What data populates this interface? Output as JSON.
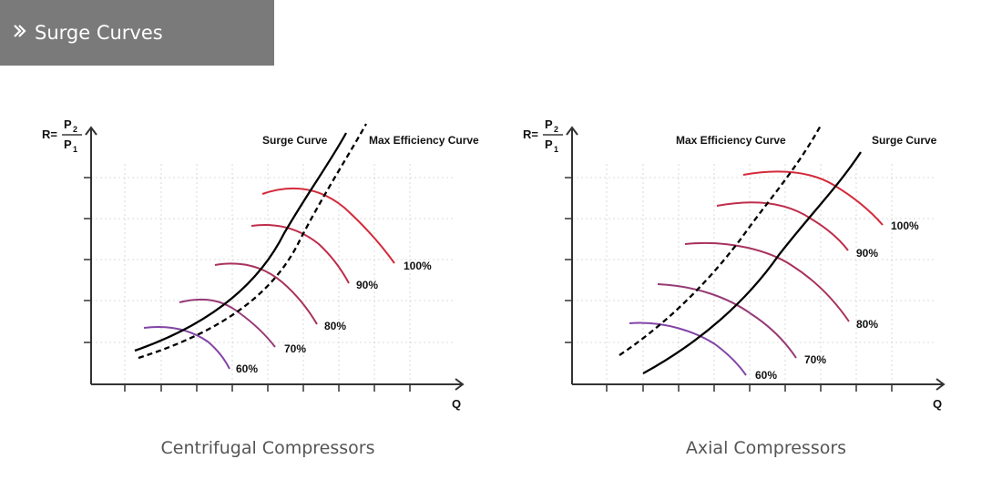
{
  "header": {
    "title": "Surge Curves",
    "icon": "double-chevron-right-icon"
  },
  "colors": {
    "header_bg": "#7a7a7a",
    "surge": "#000000",
    "p100": "#d42a3a",
    "p90": "#bf2d4c",
    "p80": "#a8325e",
    "p70": "#963a76",
    "p60": "#8344a6"
  },
  "panels": [
    {
      "caption": "Centrifugal Compressors",
      "yaxis": {
        "r": "R=",
        "num": "P",
        "num_sub": "2",
        "den": "P",
        "den_sub": "1"
      },
      "xaxis_label": "Q",
      "legend": {
        "surge": "Surge Curve",
        "max_eff": "Max Efficiency Curve"
      },
      "speed_labels": [
        "100%",
        "90%",
        "80%",
        "70%",
        "60%"
      ]
    },
    {
      "caption": "Axial Compressors",
      "yaxis": {
        "r": "R=",
        "num": "P",
        "num_sub": "2",
        "den": "P",
        "den_sub": "1"
      },
      "xaxis_label": "Q",
      "legend": {
        "surge": "Surge Curve",
        "max_eff": "Max Efficiency Curve"
      },
      "speed_labels": [
        "100%",
        "90%",
        "80%",
        "70%",
        "60%"
      ]
    }
  ]
}
